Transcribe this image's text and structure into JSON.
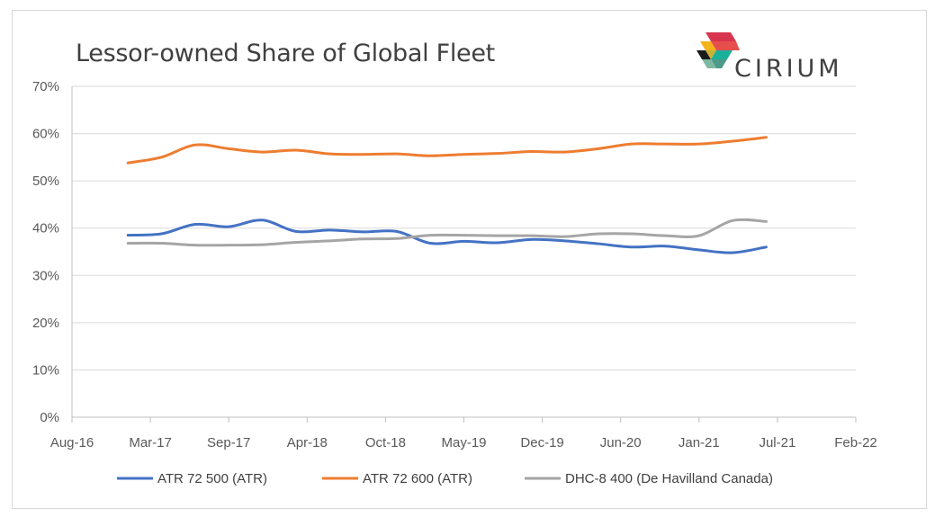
{
  "chart_data": {
    "type": "line",
    "title": "Lessor-owned Share of Global Fleet",
    "xlabel": "",
    "ylabel": "",
    "ylim": [
      0,
      70
    ],
    "y_ticks": [
      "0%",
      "10%",
      "20%",
      "30%",
      "40%",
      "50%",
      "60%",
      "70%"
    ],
    "x_tick_labels": [
      "Aug-16",
      "Mar-17",
      "Sep-17",
      "Apr-18",
      "Oct-18",
      "May-19",
      "Dec-19",
      "Jun-20",
      "Jan-21",
      "Jul-21",
      "Feb-22"
    ],
    "x": [
      "Jan-17",
      "Apr-17",
      "Jul-17",
      "Oct-17",
      "Jan-18",
      "Apr-18",
      "Jul-18",
      "Oct-18",
      "Jan-19",
      "Apr-19",
      "Jul-19",
      "Oct-19",
      "Jan-20",
      "Apr-20",
      "Jul-20",
      "Oct-20",
      "Jan-21",
      "Apr-21",
      "Jul-21",
      "Oct-21"
    ],
    "series": [
      {
        "name": "ATR 72 500 (ATR)",
        "color": "#4472c4",
        "values": [
          38.5,
          38.8,
          40.8,
          40.3,
          41.7,
          39.3,
          39.6,
          39.2,
          39.3,
          36.8,
          37.2,
          36.9,
          37.6,
          37.3,
          36.7,
          36.0,
          36.2,
          35.4,
          34.8,
          36.0
        ]
      },
      {
        "name": "ATR 72 600 (ATR)",
        "color": "#ed7d31",
        "values": [
          53.8,
          55.0,
          57.6,
          56.8,
          56.1,
          56.5,
          55.7,
          55.6,
          55.7,
          55.3,
          55.6,
          55.8,
          56.2,
          56.1,
          56.8,
          57.8,
          57.8,
          57.8,
          58.4,
          59.2
        ]
      },
      {
        "name": "DHC-8 400 (De Havilland Canada)",
        "color": "#a5a5a5",
        "values": [
          36.8,
          36.8,
          36.4,
          36.4,
          36.5,
          37.0,
          37.3,
          37.7,
          37.8,
          38.5,
          38.5,
          38.4,
          38.4,
          38.2,
          38.8,
          38.8,
          38.4,
          38.4,
          41.6,
          41.4
        ]
      }
    ],
    "grid": true,
    "legend": "bottom"
  },
  "brand": {
    "logo_text": "CIRIUM"
  }
}
